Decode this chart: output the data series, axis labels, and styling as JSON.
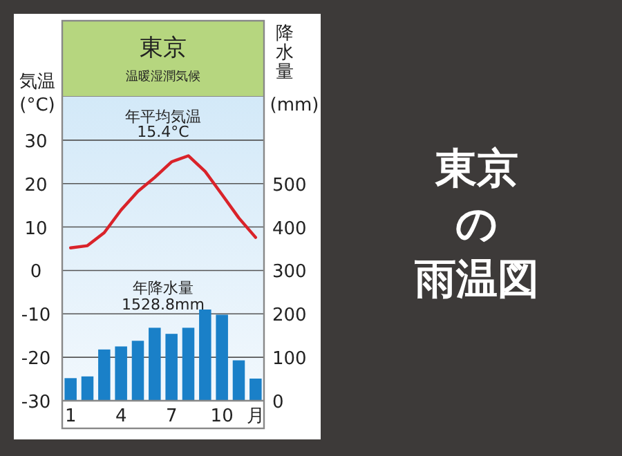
{
  "chart_data": {
    "type": "bar",
    "title": "東京",
    "subtitle": "温暖湿潤気候",
    "ylabel": "気温\n(°C)",
    "y2label": "降水量\n(mm)",
    "categories": [
      "1",
      null,
      null,
      "4",
      null,
      null,
      "7",
      null,
      null,
      "10",
      null,
      "月"
    ],
    "series": [
      {
        "axis": "y2",
        "color": "#1a80c8",
        "values": [
          52,
          56,
          118,
          125,
          138,
          168,
          154,
          168,
          210,
          198,
          93,
          51
        ]
      },
      {
        "type": "line",
        "axis": "y",
        "color": "#d9232a",
        "values": [
          5.2,
          5.7,
          8.7,
          13.9,
          18.2,
          21.4,
          25.0,
          26.4,
          22.8,
          17.5,
          12.1,
          7.6
        ]
      }
    ],
    "ylim": [
      -30,
      40
    ],
    "yticks": [
      -30,
      -20,
      -10,
      0,
      10,
      20,
      30
    ],
    "y2lim": [
      0,
      700
    ],
    "y2ticks": [
      0,
      100,
      200,
      300,
      400,
      500
    ],
    "grid": "y",
    "annotations": [
      "年平均気温\n15.4°C",
      "年降水量\n1528.8mm",
      "東京",
      "の",
      "雨温図"
    ]
  }
}
